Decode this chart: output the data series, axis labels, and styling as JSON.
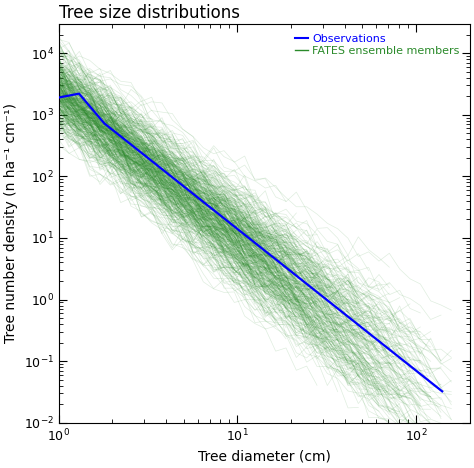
{
  "title": "Tree size distributions",
  "xlabel": "Tree diameter (cm)",
  "ylabel": "Tree number density (n ha⁻¹ cm⁻¹)",
  "xlim": [
    1,
    200
  ],
  "ylim": [
    0.01,
    30000
  ],
  "obs_color": "#0000ff",
  "ensemble_color": "#2a8a2a",
  "ensemble_alpha": 0.15,
  "n_ensemble": 400,
  "obs_label": "Observations",
  "ensemble_label": "FATES ensemble members",
  "seed": 42,
  "title_fontsize": 12,
  "label_fontsize": 10,
  "tick_fontsize": 9,
  "legend_fontsize": 8,
  "obs_amplitude": 2800,
  "obs_slope": 2.3,
  "obs_x": [
    1.0,
    1.3,
    1.8,
    2.5,
    3.5,
    5.0,
    7.0,
    10.0,
    15.0,
    20.0,
    30.0,
    50.0,
    70.0,
    100.0,
    140.0
  ],
  "ens_amplitude_mean_log": 7.8,
  "ens_amplitude_sigma": 0.7,
  "ens_slope_min": 1.9,
  "ens_slope_max": 2.8,
  "ens_noise_sigma": 0.25
}
